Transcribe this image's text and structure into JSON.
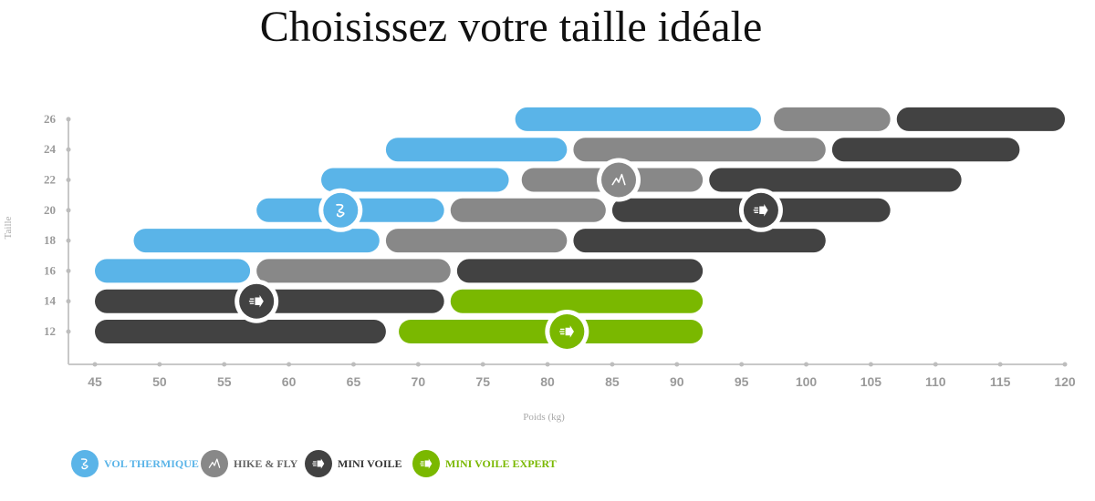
{
  "title": "Choisissez votre taille idéale",
  "chart_data": {
    "type": "bar",
    "subtype": "horizontal-range",
    "xlabel": "Poids (kg)",
    "ylabel": "Taille",
    "xlim": [
      45,
      120
    ],
    "x_ticks": [
      45,
      50,
      55,
      60,
      65,
      70,
      75,
      80,
      85,
      90,
      95,
      100,
      105,
      110,
      115,
      120
    ],
    "y_ticks": [
      12,
      14,
      16,
      18,
      20,
      22,
      24,
      26
    ],
    "grid": false,
    "legend_position": "bottom-left",
    "categories_meaning": "Taille",
    "series": [
      {
        "name": "VOL THERMIQUE",
        "color": "#5ab4e8",
        "icon": "thermal-icon",
        "ranges": [
          {
            "size": 26,
            "min": 77.5,
            "max": 96.5
          },
          {
            "size": 24,
            "min": 67.5,
            "max": 81.5
          },
          {
            "size": 22,
            "min": 62.5,
            "max": 77
          },
          {
            "size": 20,
            "min": 57.5,
            "max": 72
          },
          {
            "size": 18,
            "min": 48,
            "max": 67
          },
          {
            "size": 16,
            "min": 45,
            "max": 57
          }
        ],
        "marker": {
          "size": 20,
          "x": 64
        }
      },
      {
        "name": "HIKE & FLY",
        "color": "#888888",
        "icon": "mountain-icon",
        "ranges": [
          {
            "size": 26,
            "min": 97.5,
            "max": 106.5
          },
          {
            "size": 24,
            "min": 82,
            "max": 101.5
          },
          {
            "size": 22,
            "min": 78,
            "max": 92
          },
          {
            "size": 20,
            "min": 72.5,
            "max": 84.5
          },
          {
            "size": 18,
            "min": 67.5,
            "max": 81.5
          },
          {
            "size": 16,
            "min": 57.5,
            "max": 72.5
          }
        ],
        "marker": {
          "size": 22,
          "x": 85.5
        }
      },
      {
        "name": "MINI VOILE",
        "color": "#424242",
        "icon": "fast-arrow-icon",
        "ranges": [
          {
            "size": 26,
            "min": 107,
            "max": 120
          },
          {
            "size": 24,
            "min": 102,
            "max": 116.5
          },
          {
            "size": 22,
            "min": 92.5,
            "max": 112
          },
          {
            "size": 20,
            "min": 85,
            "max": 106.5
          },
          {
            "size": 18,
            "min": 82,
            "max": 101.5
          },
          {
            "size": 16,
            "min": 73,
            "max": 92
          },
          {
            "size": 14,
            "min": 45,
            "max": 72
          },
          {
            "size": 12,
            "min": 45,
            "max": 67.5
          }
        ],
        "marker": [
          {
            "size": 20,
            "x": 96.5
          },
          {
            "size": 14,
            "x": 57.5
          }
        ]
      },
      {
        "name": "MINI VOILE EXPERT",
        "color": "#7ab800",
        "icon": "fast-arrow-icon",
        "ranges": [
          {
            "size": 14,
            "min": 72.5,
            "max": 92
          },
          {
            "size": 12,
            "min": 68.5,
            "max": 92
          }
        ],
        "marker": {
          "size": 12,
          "x": 81.5
        }
      }
    ]
  }
}
